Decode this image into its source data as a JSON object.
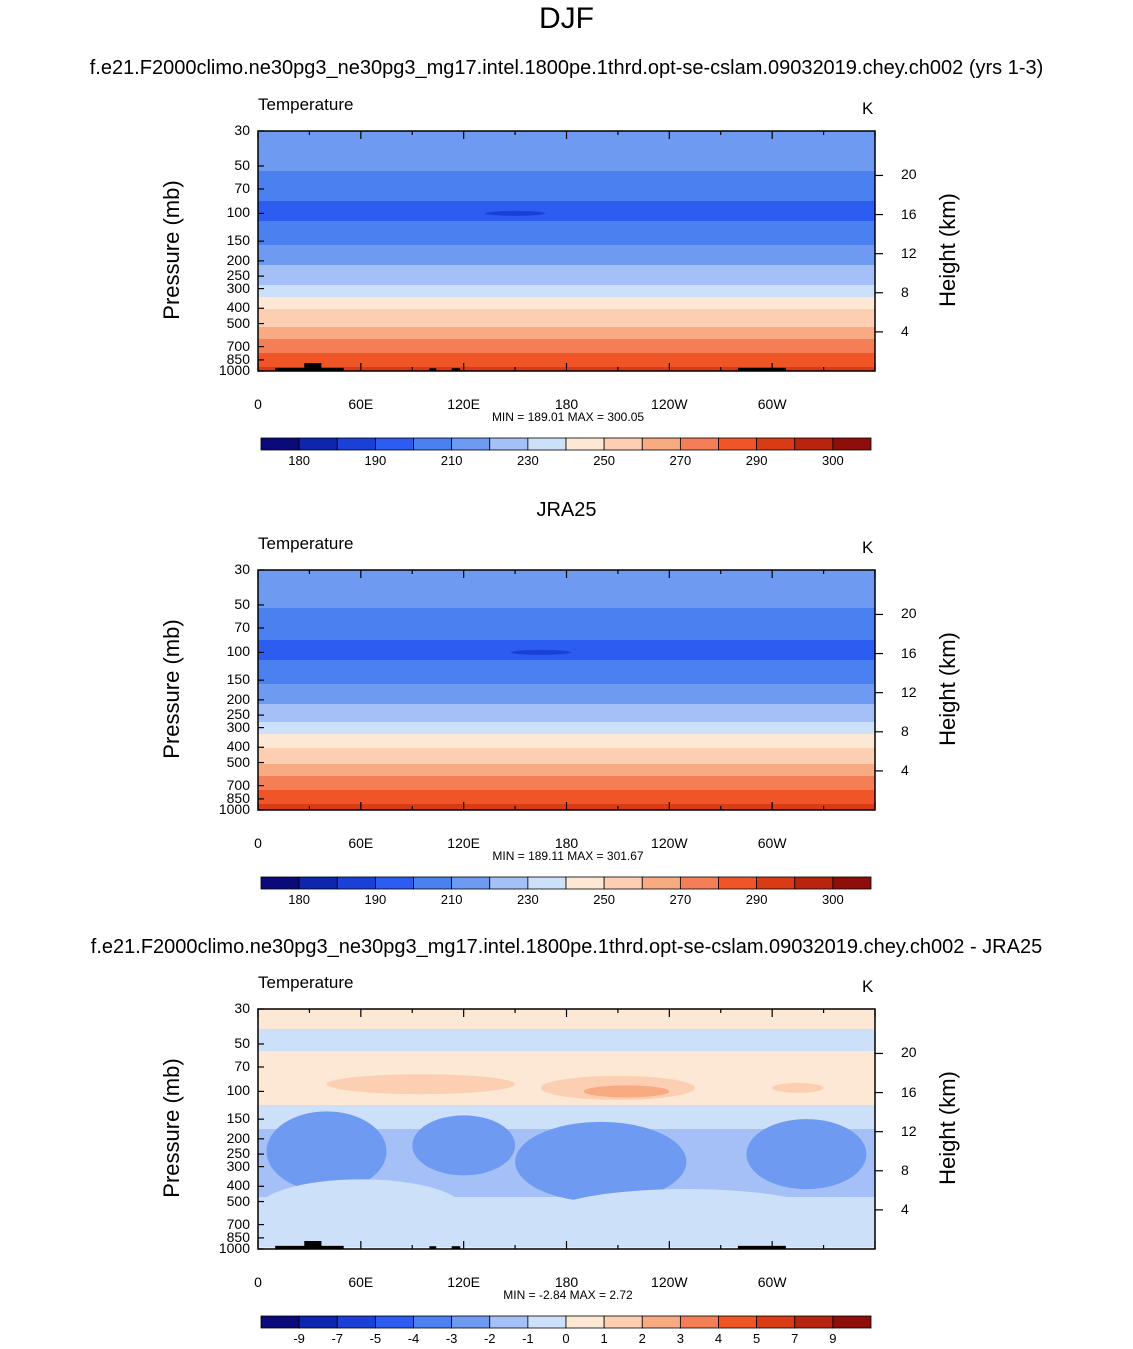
{
  "title": "DJF",
  "run_title": "f.e21.F2000climo.ne30pg3_ne30pg3_mg17.intel.1800pe.1thrd.opt-se-cslam.09032019.chey.ch002 (yrs 1-3)",
  "obs_title": "JRA25",
  "diff_title": "f.e21.F2000climo.ne30pg3_ne30pg3_mg17.intel.1800pe.1thrd.opt-se-cslam.09032019.chey.ch002 - JRA25",
  "chart_data": [
    {
      "type": "heatmap",
      "variable": "Temperature",
      "units": "K",
      "ylabel": "Pressure (mb)",
      "ylabel_right": "Height (km)",
      "pressure_ticks": [
        "30",
        "50",
        "70",
        "100",
        "150",
        "200",
        "250",
        "300",
        "400",
        "500",
        "700",
        "850",
        "1000"
      ],
      "height_ticks": [
        "20",
        "16",
        "12",
        "8",
        "4"
      ],
      "x_ticks": [
        "0",
        "60E",
        "120E",
        "180",
        "120W",
        "60W"
      ],
      "min_label": "MIN = 189.01",
      "max_label": "MAX = 300.05",
      "profile_levels": [
        "30",
        "50",
        "70",
        "100",
        "150",
        "200",
        "250",
        "300",
        "400",
        "500",
        "700",
        "850",
        "1000"
      ],
      "profile_values": [
        220,
        212,
        203,
        197,
        208,
        218,
        224,
        233,
        249,
        258,
        276,
        285,
        292
      ],
      "cold_spot": {
        "lon": 150,
        "pressure": 100,
        "value": 189
      },
      "colorbar_levels": [
        180,
        185,
        190,
        200,
        210,
        220,
        230,
        240,
        250,
        260,
        270,
        280,
        290,
        295,
        300
      ],
      "colorbar_labels": [
        "180",
        "190",
        "210",
        "230",
        "250",
        "270",
        "290",
        "300"
      ],
      "colors": [
        "#0a0a7a",
        "#0c26b0",
        "#1a40d8",
        "#2c5cf0",
        "#4a80ef",
        "#6f9af2",
        "#a4c0f7",
        "#cde0fa",
        "#fde8d6",
        "#fccfb2",
        "#f8aa83",
        "#f47e56",
        "#ef5526",
        "#d93b14",
        "#b8240e",
        "#8e0f0a"
      ]
    },
    {
      "type": "heatmap",
      "variable": "Temperature",
      "units": "K",
      "ylabel": "Pressure (mb)",
      "ylabel_right": "Height (km)",
      "pressure_ticks": [
        "30",
        "50",
        "70",
        "100",
        "150",
        "200",
        "250",
        "300",
        "400",
        "500",
        "700",
        "850",
        "1000"
      ],
      "height_ticks": [
        "20",
        "16",
        "12",
        "8",
        "4"
      ],
      "x_ticks": [
        "0",
        "60E",
        "120E",
        "180",
        "120W",
        "60W"
      ],
      "min_label": "MIN = 189.11",
      "max_label": "MAX = 301.67",
      "profile_levels": [
        "30",
        "50",
        "70",
        "100",
        "150",
        "200",
        "250",
        "300",
        "400",
        "500",
        "700",
        "850",
        "1000"
      ],
      "profile_values": [
        219,
        211,
        203,
        197,
        208,
        218,
        225,
        234,
        250,
        259,
        277,
        286,
        294
      ],
      "cold_spot": {
        "lon": 165,
        "pressure": 100,
        "value": 189
      },
      "colorbar_levels": [
        180,
        185,
        190,
        200,
        210,
        220,
        230,
        240,
        250,
        260,
        270,
        280,
        290,
        295,
        300
      ],
      "colorbar_labels": [
        "180",
        "190",
        "210",
        "230",
        "250",
        "270",
        "290",
        "300"
      ],
      "colors": [
        "#0a0a7a",
        "#0c26b0",
        "#1a40d8",
        "#2c5cf0",
        "#4a80ef",
        "#6f9af2",
        "#a4c0f7",
        "#cde0fa",
        "#fde8d6",
        "#fccfb2",
        "#f8aa83",
        "#f47e56",
        "#ef5526",
        "#d93b14",
        "#b8240e",
        "#8e0f0a"
      ]
    },
    {
      "type": "heatmap",
      "variable": "Temperature",
      "units": "K",
      "ylabel": "Pressure (mb)",
      "ylabel_right": "Height (km)",
      "pressure_ticks": [
        "30",
        "50",
        "70",
        "100",
        "150",
        "200",
        "250",
        "300",
        "400",
        "500",
        "700",
        "850",
        "1000"
      ],
      "height_ticks": [
        "20",
        "16",
        "12",
        "8",
        "4"
      ],
      "x_ticks": [
        "0",
        "60E",
        "120E",
        "180",
        "120W",
        "60W"
      ],
      "min_label": "MIN =  -2.84",
      "max_label": "MAX =   2.72",
      "profile_levels": [
        "30",
        "50",
        "70",
        "100",
        "150",
        "200",
        "250",
        "300",
        "400",
        "500",
        "700",
        "850",
        "1000"
      ],
      "profile_values": [
        0.3,
        -0.2,
        0.4,
        0.6,
        -0.6,
        -1.4,
        -1.6,
        -1.5,
        -1.2,
        -0.9,
        -0.8,
        -1.0,
        0.2
      ],
      "colorbar_levels": [
        -9,
        -7,
        -5,
        -4,
        -3,
        -2,
        -1,
        0,
        1,
        2,
        3,
        4,
        5,
        7,
        9
      ],
      "colorbar_labels": [
        "-9",
        "-7",
        "-5",
        "-4",
        "-3",
        "-2",
        "-1",
        "0",
        "1",
        "2",
        "3",
        "4",
        "5",
        "7",
        "9"
      ],
      "colors": [
        "#0a0a7a",
        "#0c26b0",
        "#1a40d8",
        "#2c5cf0",
        "#4a80ef",
        "#6f9af2",
        "#a4c0f7",
        "#cde0fa",
        "#fde8d6",
        "#fccfb2",
        "#f8aa83",
        "#f47e56",
        "#ef5526",
        "#d93b14",
        "#b8240e",
        "#8e0f0a"
      ]
    }
  ]
}
